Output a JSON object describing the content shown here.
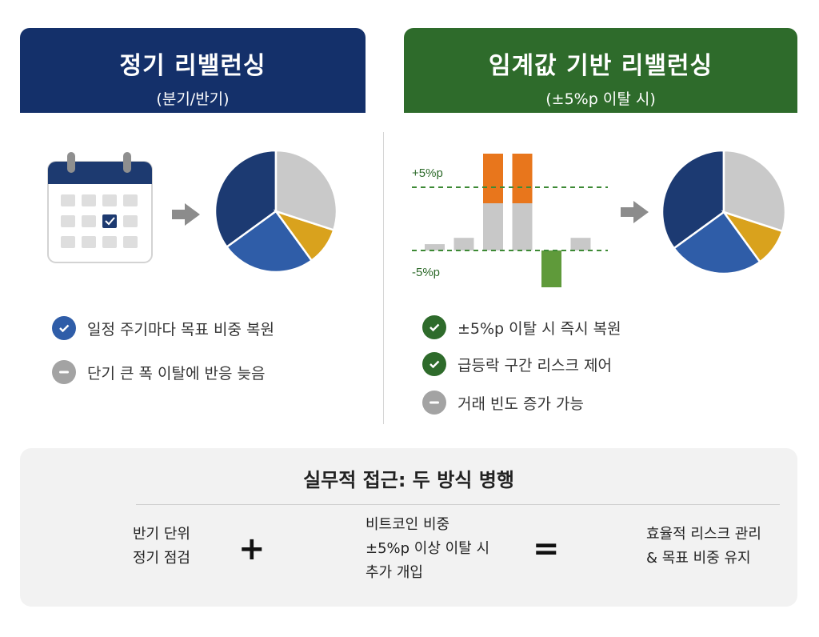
{
  "left_panel": {
    "title": "정기 리밸런싱",
    "subtitle": "(분기/반기)",
    "header_color": "#14306a",
    "bullets": [
      {
        "icon": "check-circle-icon",
        "text": "일정 주기마다 목표 비중 복원"
      },
      {
        "icon": "minus-circle-icon",
        "text": "단기 큰 폭 이탈에 반응 늦음"
      }
    ]
  },
  "right_panel": {
    "title": "임계값 기반 리밸런싱",
    "subtitle": "(±5%p 이탈 시)",
    "header_color": "#2e6b2b",
    "threshold_upper_label": "+5%p",
    "threshold_lower_label": "-5%p",
    "bullets": [
      {
        "icon": "check-circle-icon",
        "text": "±5%p 이탈 시 즉시 복원"
      },
      {
        "icon": "check-circle-icon",
        "text": "급등락 구간 리스크 제어"
      },
      {
        "icon": "minus-circle-icon",
        "text": "거래 빈도 증가 가능"
      }
    ]
  },
  "chart_data": [
    {
      "type": "pie",
      "series": [
        {
          "values": [
            35,
            25,
            10,
            30
          ]
        }
      ],
      "colors": [
        "#1c3a72",
        "#2f5da8",
        "#d9a21d",
        "#c9c9c9"
      ]
    },
    {
      "type": "bar",
      "values": [
        1,
        2,
        8,
        7,
        -6,
        2
      ],
      "upper_threshold": 5,
      "lower_threshold": -5,
      "colors": {
        "normal": "#c8c8c8",
        "exceed_up": "#e8761c",
        "exceed_down": "#5f9a3a",
        "threshold_line": "#3d8a35"
      }
    }
  ],
  "bottom": {
    "title": "실무적 접근: 두 방식 병행",
    "item1": {
      "icon": "calendar-icon",
      "line1": "반기 단위",
      "line2": "정기 점검"
    },
    "plus": "+",
    "item2": {
      "icon": "bitcoin-icon",
      "line1": "비트코인 비중",
      "line2": "±5%p 이상 이탈 시",
      "line3": "추가 개입"
    },
    "equals": "=",
    "item3": {
      "icon": "shield-check-icon",
      "line1": "효율적 리스크 관리",
      "line2": "& 목표 비중 유지"
    }
  }
}
